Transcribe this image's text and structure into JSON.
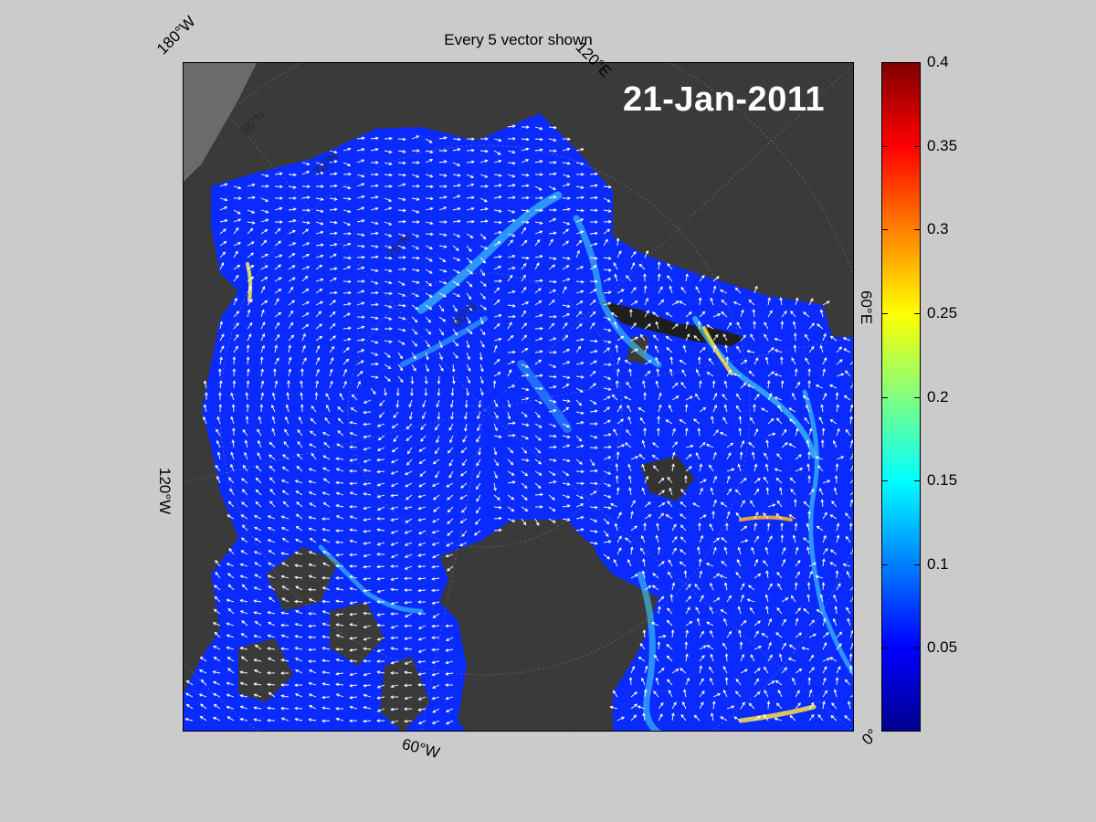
{
  "title": "Every 5 vector shown",
  "date_label": "21-Jan-2011",
  "longitude_labels": {
    "top_left": "180°W",
    "top_right": "120°E",
    "right": "60°E",
    "bottom_right": "0°",
    "bottom": "60°W",
    "left": "120°W"
  },
  "latitude_labels": [
    "66°N",
    "70°N",
    "75°N",
    "80°N"
  ],
  "colorbar": {
    "colormap": "jet",
    "min": 0,
    "max": 0.4,
    "ticks": [
      "0.4",
      "0.35",
      "0.3",
      "0.25",
      "0.2",
      "0.15",
      "0.1",
      "0.05"
    ]
  },
  "colors": {
    "figure_background": "#cbcbcb",
    "land": "#3a3a3a",
    "ice_base": "#0a2bff",
    "fast_flow": "#3fd0ff",
    "vector": "#ffffff"
  }
}
